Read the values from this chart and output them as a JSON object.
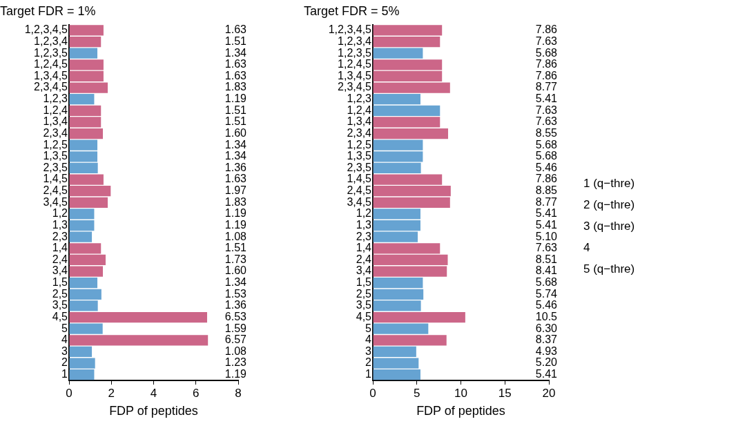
{
  "chart_data": [
    {
      "type": "bar",
      "orientation": "horizontal",
      "title": "Target FDR = 1%",
      "xlabel": "FDP of peptides",
      "grid": false,
      "legend": false,
      "categories": [
        "1,2,3,4,5",
        "1,2,3,4",
        "1,2,3,5",
        "1,2,4,5",
        "1,3,4,5",
        "2,3,4,5",
        "1,2,3",
        "1,2,4",
        "1,3,4",
        "2,3,4",
        "1,2,5",
        "1,3,5",
        "2,3,5",
        "1,4,5",
        "2,4,5",
        "3,4,5",
        "1,2",
        "1,3",
        "2,3",
        "1,4",
        "2,4",
        "3,4",
        "1,5",
        "2,5",
        "3,5",
        "4,5",
        "5",
        "4",
        "3",
        "2",
        "1"
      ],
      "values": [
        1.63,
        1.51,
        1.34,
        1.63,
        1.63,
        1.83,
        1.19,
        1.51,
        1.51,
        1.6,
        1.34,
        1.34,
        1.36,
        1.63,
        1.97,
        1.83,
        1.19,
        1.19,
        1.08,
        1.51,
        1.73,
        1.6,
        1.34,
        1.53,
        1.36,
        6.53,
        1.59,
        6.57,
        1.08,
        1.23,
        1.19
      ],
      "value_labels": [
        "1.63",
        "1.51",
        "1.34",
        "1.63",
        "1.63",
        "1.83",
        "1.19",
        "1.51",
        "1.51",
        "1.60",
        "1.34",
        "1.34",
        "1.36",
        "1.63",
        "1.97",
        "1.83",
        "1.19",
        "1.19",
        "1.08",
        "1.51",
        "1.73",
        "1.60",
        "1.34",
        "1.53",
        "1.36",
        "6.53",
        "1.59",
        "6.57",
        "1.08",
        "1.23",
        "1.19"
      ],
      "colors": [
        "#cc6688",
        "#cc6688",
        "#66a3d2",
        "#cc6688",
        "#cc6688",
        "#cc6688",
        "#66a3d2",
        "#cc6688",
        "#cc6688",
        "#cc6688",
        "#66a3d2",
        "#66a3d2",
        "#66a3d2",
        "#cc6688",
        "#cc6688",
        "#cc6688",
        "#66a3d2",
        "#66a3d2",
        "#66a3d2",
        "#cc6688",
        "#cc6688",
        "#cc6688",
        "#66a3d2",
        "#66a3d2",
        "#66a3d2",
        "#cc6688",
        "#66a3d2",
        "#cc6688",
        "#66a3d2",
        "#66a3d2",
        "#66a3d2"
      ],
      "xlim": [
        0,
        8
      ],
      "xticks": [
        0,
        2,
        4,
        6,
        8
      ]
    },
    {
      "type": "bar",
      "orientation": "horizontal",
      "title": "Target FDR = 5%",
      "xlabel": "FDP of peptides",
      "grid": false,
      "legend": false,
      "categories": [
        "1,2,3,4,5",
        "1,2,3,4",
        "1,2,3,5",
        "1,2,4,5",
        "1,3,4,5",
        "2,3,4,5",
        "1,2,3",
        "1,2,4",
        "1,3,4",
        "2,3,4",
        "1,2,5",
        "1,3,5",
        "2,3,5",
        "1,4,5",
        "2,4,5",
        "3,4,5",
        "1,2",
        "1,3",
        "2,3",
        "1,4",
        "2,4",
        "3,4",
        "1,5",
        "2,5",
        "3,5",
        "4,5",
        "5",
        "4",
        "3",
        "2",
        "1"
      ],
      "values": [
        7.86,
        7.63,
        5.68,
        7.86,
        7.86,
        8.77,
        5.41,
        7.63,
        7.63,
        8.55,
        5.68,
        5.68,
        5.46,
        7.86,
        8.85,
        8.77,
        5.41,
        5.41,
        5.1,
        7.63,
        8.51,
        8.41,
        5.68,
        5.74,
        5.46,
        10.5,
        6.3,
        8.37,
        4.93,
        5.2,
        5.41
      ],
      "value_labels": [
        "7.86",
        "7.63",
        "5.68",
        "7.86",
        "7.86",
        "8.77",
        "5.41",
        "7.63",
        "7.63",
        "8.55",
        "5.68",
        "5.68",
        "5.46",
        "7.86",
        "8.85",
        "8.77",
        "5.41",
        "5.41",
        "5.10",
        "7.63",
        "8.51",
        "8.41",
        "5.68",
        "5.74",
        "5.46",
        "10.5",
        "6.30",
        "8.37",
        "4.93",
        "5.20",
        "5.41"
      ],
      "colors": [
        "#cc6688",
        "#cc6688",
        "#66a3d2",
        "#cc6688",
        "#cc6688",
        "#cc6688",
        "#66a3d2",
        "#66a3d2",
        "#cc6688",
        "#cc6688",
        "#66a3d2",
        "#66a3d2",
        "#66a3d2",
        "#cc6688",
        "#cc6688",
        "#cc6688",
        "#66a3d2",
        "#66a3d2",
        "#66a3d2",
        "#cc6688",
        "#cc6688",
        "#cc6688",
        "#66a3d2",
        "#66a3d2",
        "#66a3d2",
        "#cc6688",
        "#66a3d2",
        "#cc6688",
        "#66a3d2",
        "#66a3d2",
        "#66a3d2"
      ],
      "xlim": [
        0,
        20
      ],
      "xticks": [
        0,
        5,
        10,
        15,
        20
      ]
    },
    {
      "type": "other",
      "annotations": [
        "1 (q−thre)",
        "2 (q−thre)",
        "3 (q−thre)",
        "4",
        "5 (q−thre)"
      ]
    }
  ]
}
